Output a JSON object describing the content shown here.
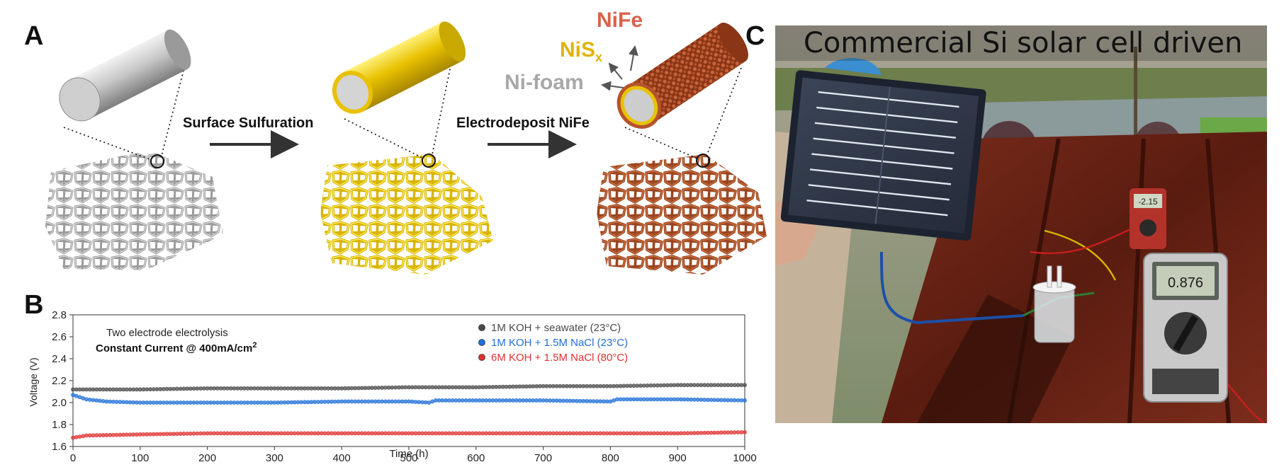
{
  "panels": {
    "a": "A",
    "b": "B",
    "c": "C"
  },
  "schematic": {
    "arrow1_label": "Surface Sulfuration",
    "arrow2_label": "Electrodeposit NiFe",
    "layer_nife": "NiFe",
    "layer_nis_base": "NiS",
    "layer_nis_sub": "x",
    "layer_nifoam": "Ni-foam",
    "colors": {
      "ni": "#b5b5b5",
      "nis": "#e8c100",
      "nife": "#b8532c",
      "nife_label": "#d9624a",
      "nis_label": "#e0b400"
    }
  },
  "photo": {
    "caption": "Commercial Si solar cell driven",
    "meter_small": "-2.15",
    "meter_large": "0.876"
  },
  "chart_data": {
    "type": "scatter",
    "annotation_line1": "Two electrode electrolysis",
    "annotation_line2_base": "Constant Current  @ 400mA/cm",
    "annotation_line2_sup": "2",
    "xlabel": "Time (h)",
    "ylabel": "Voltage (V)",
    "xlim": [
      0,
      1000
    ],
    "ylim": [
      1.6,
      2.8
    ],
    "xticks": [
      "0",
      "100",
      "200",
      "300",
      "400",
      "500",
      "600",
      "700",
      "800",
      "900",
      "1000"
    ],
    "yticks": [
      "1.6",
      "1.8",
      "2.0",
      "2.2",
      "2.4",
      "2.6",
      "2.8"
    ],
    "legend_position": "top-right",
    "series": [
      {
        "name": "1M KOH + seawater (23°C)",
        "color": "#4a4a4a",
        "points": [
          [
            0,
            2.12
          ],
          [
            50,
            2.12
          ],
          [
            100,
            2.12
          ],
          [
            200,
            2.13
          ],
          [
            300,
            2.13
          ],
          [
            400,
            2.13
          ],
          [
            500,
            2.14
          ],
          [
            600,
            2.14
          ],
          [
            700,
            2.15
          ],
          [
            800,
            2.15
          ],
          [
            900,
            2.16
          ],
          [
            1000,
            2.16
          ]
        ]
      },
      {
        "name": "1M KOH + 1.5M NaCl (23°C)",
        "color": "#1f6fd8",
        "points": [
          [
            0,
            2.07
          ],
          [
            20,
            2.03
          ],
          [
            50,
            2.01
          ],
          [
            100,
            2.0
          ],
          [
            200,
            2.0
          ],
          [
            300,
            2.0
          ],
          [
            400,
            2.01
          ],
          [
            500,
            2.01
          ],
          [
            530,
            2.0
          ],
          [
            540,
            2.02
          ],
          [
            600,
            2.02
          ],
          [
            700,
            2.02
          ],
          [
            800,
            2.01
          ],
          [
            810,
            2.03
          ],
          [
            900,
            2.03
          ],
          [
            1000,
            2.02
          ]
        ]
      },
      {
        "name": "6M KOH + 1.5M NaCl (80°C)",
        "color": "#e03030",
        "points": [
          [
            0,
            1.68
          ],
          [
            20,
            1.7
          ],
          [
            100,
            1.71
          ],
          [
            200,
            1.72
          ],
          [
            300,
            1.72
          ],
          [
            400,
            1.72
          ],
          [
            500,
            1.72
          ],
          [
            600,
            1.72
          ],
          [
            700,
            1.72
          ],
          [
            800,
            1.72
          ],
          [
            900,
            1.72
          ],
          [
            1000,
            1.73
          ]
        ]
      }
    ]
  }
}
